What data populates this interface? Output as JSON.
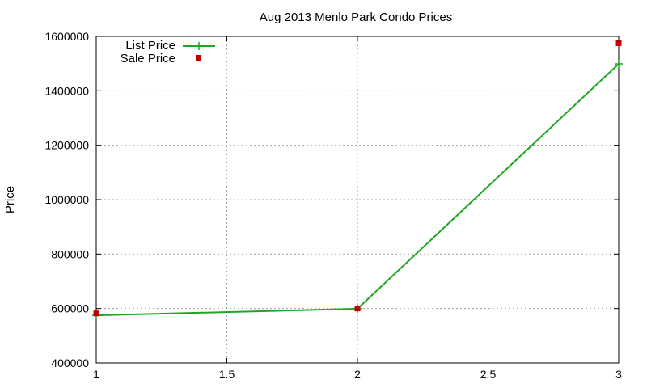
{
  "chart_data": {
    "type": "line",
    "title": "Aug 2013 Menlo Park Condo Prices",
    "xlabel": "",
    "ylabel": "Price",
    "xlim": [
      1,
      3
    ],
    "ylim": [
      400000,
      1600000
    ],
    "x_ticks": [
      1,
      1.5,
      2,
      2.5,
      3
    ],
    "x_tick_labels": [
      "1",
      "1.5",
      "2",
      "2.5",
      "3"
    ],
    "y_ticks": [
      400000,
      600000,
      800000,
      1000000,
      1200000,
      1400000,
      1600000
    ],
    "y_tick_labels": [
      "400000",
      "600000",
      "800000",
      "1000000",
      "1200000",
      "1400000",
      "1600000"
    ],
    "grid": true,
    "legend_position": "top-left",
    "series": [
      {
        "name": "List Price",
        "style": "line-with-plus-markers",
        "color": "#1fa61f",
        "x": [
          1,
          2,
          3
        ],
        "y": [
          575000,
          599000,
          1499000
        ]
      },
      {
        "name": "Sale Price",
        "style": "square-markers",
        "color": "#c00000",
        "x": [
          1,
          2,
          3
        ],
        "y": [
          582000,
          600000,
          1575000
        ]
      }
    ]
  }
}
